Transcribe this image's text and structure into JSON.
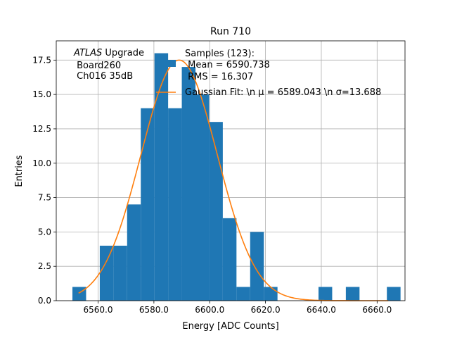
{
  "chart_data": {
    "type": "bar",
    "title": "Run 710",
    "xlabel": "Energy [ADC Counts]",
    "ylabel": "Entries",
    "xlim": [
      6545,
      6670
    ],
    "ylim": [
      0,
      18.9
    ],
    "grid": true,
    "bin_width": 4.9,
    "bin_starts": [
      6550.8,
      6555.7,
      6560.6,
      6565.5,
      6570.4,
      6575.3,
      6580.2,
      6585.1,
      6590.0,
      6594.9,
      6599.8,
      6604.7,
      6609.6,
      6614.5,
      6619.4,
      6624.3,
      6629.2,
      6634.1,
      6639.0,
      6643.9,
      6648.8,
      6653.7,
      6658.6,
      6663.5
    ],
    "counts": [
      1,
      0,
      4,
      4,
      7,
      14,
      18,
      14,
      17,
      15,
      13,
      6,
      1,
      5,
      1,
      0,
      0,
      0,
      1,
      0,
      1,
      0,
      0,
      1
    ],
    "x_ticks": [
      6560,
      6580,
      6600,
      6620,
      6640,
      6660
    ],
    "x_tick_labels": [
      "6560.0",
      "6580.0",
      "6600.0",
      "6620.0",
      "6640.0",
      "6660.0"
    ],
    "y_ticks": [
      0,
      2.5,
      5,
      7.5,
      10,
      12.5,
      15,
      17.5
    ],
    "y_tick_labels": [
      "0.0",
      "2.5",
      "5.0",
      "7.5",
      "10.0",
      "12.5",
      "15.0",
      "17.5"
    ],
    "series": [
      {
        "name": "Samples (123):\n Mean = 6590.738\n RMS = 16.307",
        "kind": "histogram",
        "color": "#1f77b4"
      },
      {
        "name": "Gaussian Fit: \\n $\\mu$ = 6589.043 \\n $\\sigma$=13.688",
        "kind": "line",
        "color": "#ff7f0e",
        "amplitude": 17.5,
        "mu": 6589.043,
        "sigma": 13.688,
        "x_range": [
          6553,
          6664
        ]
      }
    ],
    "legend": {
      "position": "top-center",
      "entry_samples": [
        "Samples (123):",
        " Mean = 6590.738",
        " RMS = 16.307"
      ],
      "entry_fit": "Gaussian Fit: \\n μ = 6589.043 \\n σ=13.688"
    },
    "annotation": {
      "position": "top-left",
      "experiment": "ATLAS",
      "label": "Upgrade",
      "line2": " Board260",
      "line3": " Ch016 35dB"
    }
  }
}
